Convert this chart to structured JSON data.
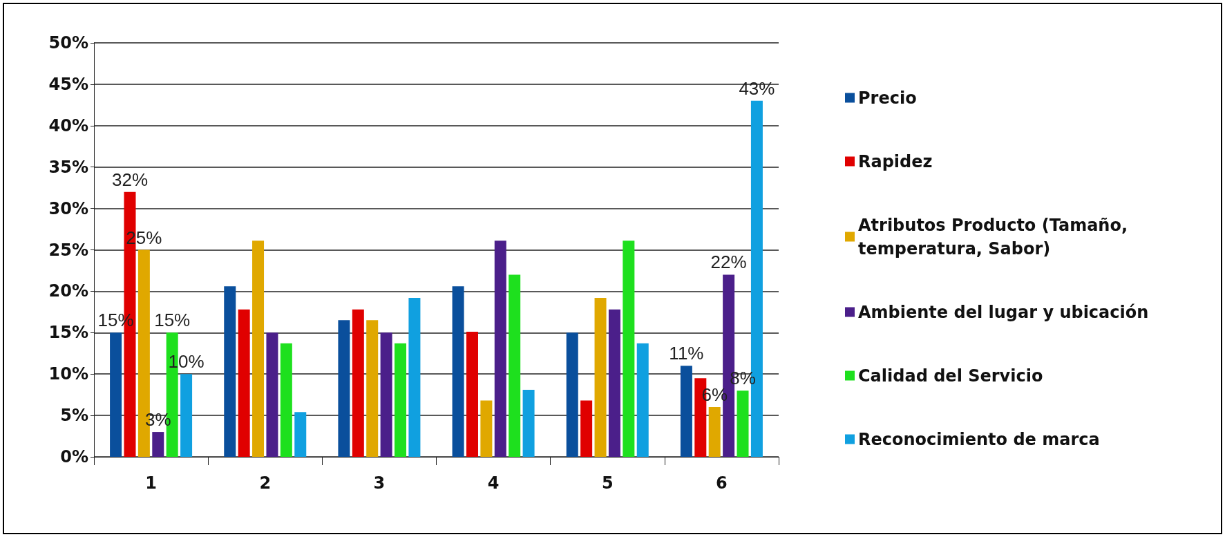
{
  "chart_data": {
    "type": "bar",
    "categories": [
      "1",
      "2",
      "3",
      "4",
      "5",
      "6"
    ],
    "series": [
      {
        "name": "Precio",
        "color": "#0a4f9c",
        "values": [
          15,
          20.6,
          16.5,
          20.6,
          15,
          11
        ],
        "value_labels": [
          "15%",
          null,
          null,
          null,
          null,
          "11%"
        ]
      },
      {
        "name": "Rapidez",
        "color": "#e00000",
        "values": [
          32,
          17.8,
          17.8,
          15.1,
          6.8,
          9.5
        ],
        "value_labels": [
          "32%",
          null,
          null,
          null,
          null,
          null
        ]
      },
      {
        "name": "Atributos Producto (Tamaño, temperatura, Sabor)",
        "color": "#e0a800",
        "values": [
          25,
          26.1,
          16.5,
          6.8,
          19.2,
          6
        ],
        "value_labels": [
          "25%",
          null,
          null,
          null,
          null,
          "6%"
        ]
      },
      {
        "name": "Ambiente del lugar y ubicación",
        "color": "#4b1f8a",
        "values": [
          3,
          15,
          15,
          26.1,
          17.8,
          22
        ],
        "value_labels": [
          "3%",
          null,
          null,
          null,
          null,
          "22%"
        ]
      },
      {
        "name": "Calidad del Servicio",
        "color": "#1ee01e",
        "values": [
          15,
          13.7,
          13.7,
          22,
          26.1,
          8
        ],
        "value_labels": [
          "15%",
          null,
          null,
          null,
          null,
          "8%"
        ]
      },
      {
        "name": "Reconocimiento de marca",
        "color": "#10a0e0",
        "values": [
          10,
          5.4,
          19.2,
          8.1,
          13.7,
          43
        ],
        "value_labels": [
          "10%",
          null,
          null,
          null,
          null,
          "43%"
        ]
      }
    ],
    "ylim": [
      0,
      50
    ],
    "yticks": [
      {
        "value": 0,
        "label": "0%"
      },
      {
        "value": 5,
        "label": "5%"
      },
      {
        "value": 10,
        "label": "10%"
      },
      {
        "value": 15,
        "label": "15%"
      },
      {
        "value": 20,
        "label": "20%"
      },
      {
        "value": 25,
        "label": "25%"
      },
      {
        "value": 30,
        "label": "30%"
      },
      {
        "value": 35,
        "label": "35%"
      },
      {
        "value": 40,
        "label": "40%"
      },
      {
        "value": 45,
        "label": "45%"
      },
      {
        "value": 50,
        "label": "50%"
      }
    ],
    "grid": "y",
    "legend": "right"
  }
}
